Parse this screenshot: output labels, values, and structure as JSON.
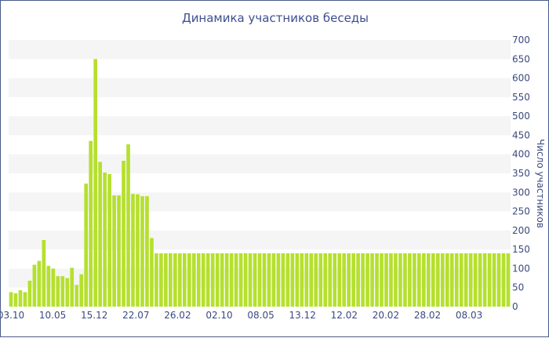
{
  "chart_data": {
    "type": "bar",
    "title": "Динамика участников беседы",
    "ylabel": "Число участников",
    "xlabel": "",
    "ylim": [
      0,
      700
    ],
    "yticks": [
      0,
      50,
      100,
      150,
      200,
      250,
      300,
      350,
      400,
      450,
      500,
      550,
      600,
      650,
      700
    ],
    "x_tick_labels": [
      "03.10",
      "10.05",
      "15.12",
      "22.07",
      "26.02",
      "02.10",
      "08.05",
      "13.12",
      "12.02",
      "20.02",
      "28.02",
      "08.03"
    ],
    "bar_color": "#b5e02e",
    "band_color": "#f5f5f5",
    "values": [
      38,
      35,
      43,
      38,
      68,
      110,
      120,
      175,
      107,
      100,
      80,
      80,
      75,
      102,
      57,
      85,
      323,
      435,
      650,
      380,
      352,
      348,
      292,
      292,
      383,
      426,
      296,
      295,
      290,
      290,
      180,
      140,
      140,
      140,
      140,
      140,
      140,
      140,
      140,
      140,
      140,
      140,
      140,
      140,
      140,
      140,
      140,
      140,
      140,
      140,
      140,
      140,
      140,
      140,
      140,
      140,
      140,
      140,
      140,
      140,
      140,
      140,
      140,
      140,
      140,
      140,
      140,
      140,
      140,
      140,
      140,
      140,
      140,
      140,
      140,
      140,
      140,
      140,
      140,
      140,
      140,
      140,
      140,
      140,
      140,
      140,
      140,
      140,
      140,
      140,
      140,
      140,
      140,
      140,
      140,
      140,
      140,
      140,
      140,
      140,
      140,
      140,
      140,
      140,
      140,
      140,
      140
    ]
  }
}
